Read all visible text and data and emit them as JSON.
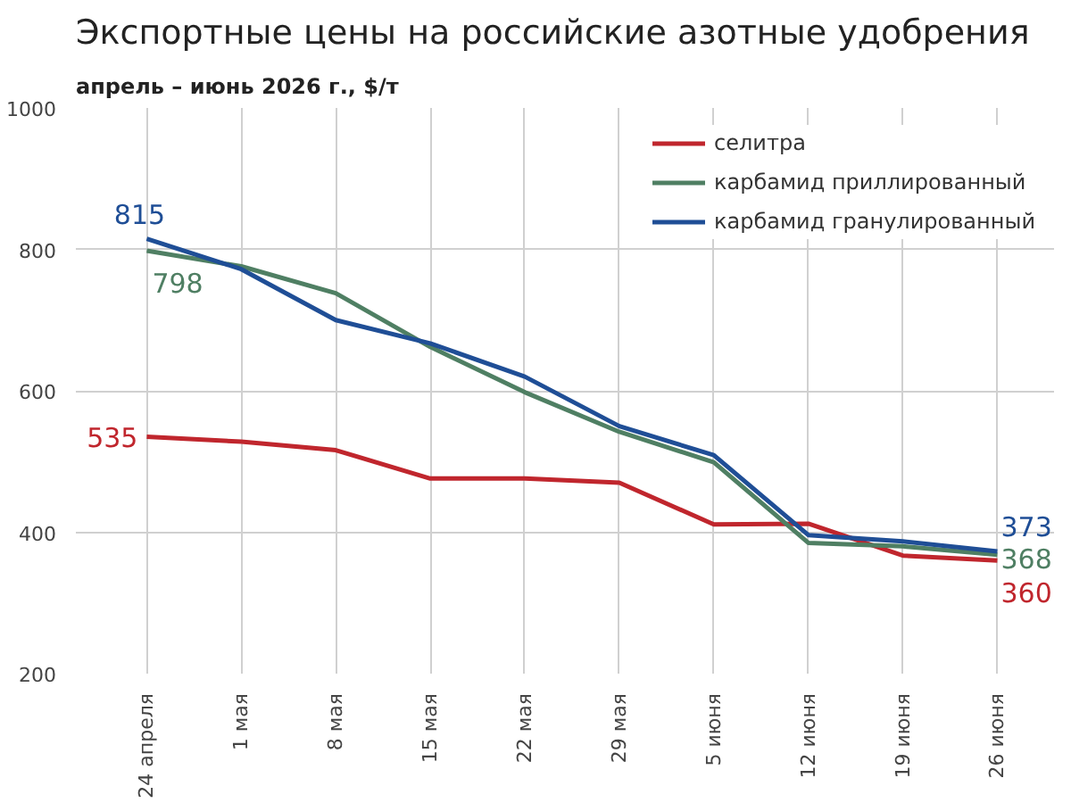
{
  "chart_data": {
    "type": "line",
    "title": "Экспортные цены на российские азотные удобрения",
    "subtitle": "апрель – июнь 2026 г., $/т",
    "categories": [
      "24 апреля",
      "1 мая",
      "8 мая",
      "15 мая",
      "22 мая",
      "29 мая",
      "5 июня",
      "12 июня",
      "19 июня",
      "26 июня"
    ],
    "series": [
      {
        "name": "селитра",
        "color": "#c0262d",
        "values": [
          535,
          528,
          516,
          476,
          476,
          470,
          411,
          412,
          367,
          360
        ],
        "value_labels": [
          "535",
          null,
          null,
          null,
          null,
          null,
          null,
          null,
          null,
          "360"
        ]
      },
      {
        "name": "карбамид приллированный",
        "color": "#4f7f63",
        "values": [
          798,
          776,
          738,
          662,
          598,
          542,
          499,
          385,
          380,
          368
        ],
        "value_labels": [
          "798",
          null,
          null,
          null,
          null,
          null,
          null,
          null,
          null,
          "368"
        ]
      },
      {
        "name": "карбамид гранулированный",
        "color": "#1f4e96",
        "values": [
          815,
          772,
          700,
          667,
          620,
          550,
          509,
          396,
          387,
          373
        ],
        "value_labels": [
          "815",
          null,
          null,
          null,
          null,
          null,
          null,
          null,
          null,
          "373"
        ]
      }
    ],
    "ylim": [
      200,
      1000
    ],
    "yticks": [
      200,
      400,
      600,
      800,
      1000
    ],
    "grid": true,
    "legend": "top right",
    "marker": "none",
    "line_style": "solid"
  }
}
